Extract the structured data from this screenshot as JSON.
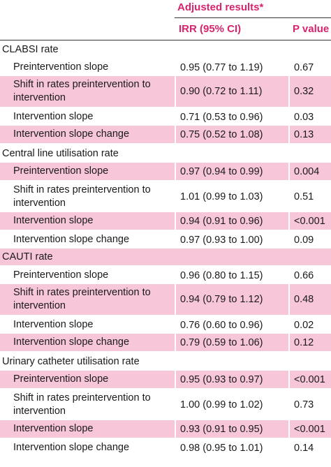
{
  "header": {
    "group_label": "Adjusted results*",
    "col_irr": "IRR (95% CI)",
    "col_p": "P value"
  },
  "rows": [
    {
      "type": "section",
      "label": "CLABSI rate"
    },
    {
      "type": "data",
      "shade": "white",
      "label": "Preintervention slope",
      "irr": "0.95 (0.77 to 1.19)",
      "p": "0.67"
    },
    {
      "type": "data",
      "shade": "pink",
      "label": "Shift in rates preintervention to intervention",
      "irr": "0.90 (0.72 to 1.11)",
      "p": "0.32"
    },
    {
      "type": "data",
      "shade": "white",
      "label": "Intervention slope",
      "irr": "0.71 (0.53 to 0.96)",
      "p": "0.03"
    },
    {
      "type": "data",
      "shade": "pink",
      "label": "Intervention slope change",
      "irr": "0.75 (0.52 to 1.08)",
      "p": "0.13"
    },
    {
      "type": "section",
      "label": "Central line utilisation rate"
    },
    {
      "type": "data",
      "shade": "pink",
      "label": "Preintervention slope",
      "irr": "0.97 (0.94 to 0.99)",
      "p": "0.004"
    },
    {
      "type": "data",
      "shade": "white",
      "label": "Shift in rates preintervention to intervention",
      "irr": "1.01 (0.99 to 1.03)",
      "p": "0.51"
    },
    {
      "type": "data",
      "shade": "pink",
      "label": "Intervention slope",
      "irr": "0.94 (0.91 to 0.96)",
      "p": "<0.001"
    },
    {
      "type": "data",
      "shade": "white",
      "label": "Intervention slope change",
      "irr": "0.97 (0.93 to 1.00)",
      "p": "0.09"
    },
    {
      "type": "section-pink",
      "label": "CAUTI rate"
    },
    {
      "type": "data",
      "shade": "white",
      "label": "Preintervention slope",
      "irr": "0.96 (0.80 to 1.15)",
      "p": "0.66"
    },
    {
      "type": "data",
      "shade": "pink",
      "label": "Shift in rates preintervention to intervention",
      "irr": "0.94 (0.79 to 1.12)",
      "p": "0.48"
    },
    {
      "type": "data",
      "shade": "white",
      "label": "Intervention slope",
      "irr": "0.76 (0.60 to 0.96)",
      "p": "0.02"
    },
    {
      "type": "data",
      "shade": "pink",
      "label": "Intervention slope change",
      "irr": "0.79 (0.59 to 1.06)",
      "p": "0.12"
    },
    {
      "type": "section",
      "label": "Urinary catheter utilisation rate"
    },
    {
      "type": "data",
      "shade": "pink",
      "label": "Preintervention slope",
      "irr": "0.95 (0.93 to 0.97)",
      "p": "<0.001"
    },
    {
      "type": "data",
      "shade": "white",
      "label": "Shift in rates preintervention to intervention",
      "irr": "1.00 (0.99 to 1.02)",
      "p": "0.73"
    },
    {
      "type": "data",
      "shade": "pink",
      "label": "Intervention slope",
      "irr": "0.93 (0.91 to 0.95)",
      "p": "<0.001"
    },
    {
      "type": "data",
      "shade": "white",
      "label": "Intervention slope change",
      "irr": "0.98 (0.95 to 1.01)",
      "p": "0.14"
    }
  ]
}
